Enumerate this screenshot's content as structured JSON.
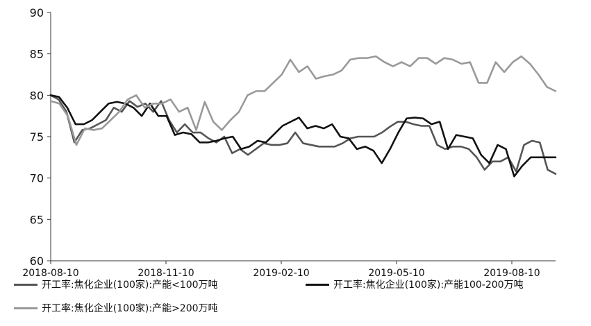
{
  "chart_data": {
    "type": "line",
    "title": "",
    "xlabel": "",
    "ylabel": "",
    "ylim": [
      60,
      90
    ],
    "yticks": [
      60,
      65,
      70,
      75,
      80,
      85,
      90
    ],
    "xtick_labels": [
      "2018-08-10",
      "2018-11-10",
      "2019-02-10",
      "2019-05-10",
      "2019-08-10"
    ],
    "grid": false,
    "legend_position": "bottom",
    "series": [
      {
        "name": "开工率:焦化企业(100家):产能<100万吨",
        "color": "#555555",
        "values": [
          80.0,
          79.5,
          78.0,
          74.3,
          75.8,
          76.0,
          76.5,
          77.0,
          78.5,
          78.0,
          79.3,
          78.6,
          79.0,
          78.0,
          79.3,
          77.0,
          75.5,
          76.5,
          75.5,
          75.5,
          74.8,
          74.3,
          75.0,
          73.0,
          73.5,
          72.8,
          73.5,
          74.2,
          74.0,
          74.0,
          74.2,
          75.5,
          74.2,
          74.0,
          73.8,
          73.8,
          73.8,
          74.2,
          74.8,
          75.0,
          75.0,
          75.0,
          75.5,
          76.2,
          76.8,
          76.8,
          76.5,
          76.3,
          76.3,
          74.0,
          73.5,
          73.8,
          73.8,
          73.5,
          72.5,
          71.0,
          72.0,
          72.0,
          72.5,
          70.8,
          74.0,
          74.5,
          74.3,
          71.0,
          70.5
        ]
      },
      {
        "name": "开工率:焦化企业(100家):产能100-200万吨",
        "color": "#111111",
        "values": [
          80.0,
          79.8,
          78.5,
          76.5,
          76.5,
          77.0,
          78.0,
          79.0,
          79.2,
          79.0,
          78.5,
          77.5,
          79.0,
          77.5,
          77.5,
          75.2,
          75.5,
          75.3,
          74.3,
          74.3,
          74.5,
          74.8,
          75.0,
          73.5,
          73.8,
          74.5,
          74.3,
          75.3,
          76.3,
          76.8,
          77.3,
          76.0,
          76.3,
          76.0,
          76.5,
          75.0,
          74.8,
          73.5,
          73.8,
          73.3,
          71.8,
          73.5,
          75.5,
          77.2,
          77.3,
          77.2,
          76.5,
          76.8,
          73.5,
          75.2,
          75.0,
          74.8,
          72.8,
          71.8,
          74.0,
          73.5,
          70.2,
          71.5,
          72.5,
          72.5,
          72.5,
          72.5
        ]
      },
      {
        "name": "开工率:焦化企业(100家):产能>200万吨",
        "color": "#999999",
        "values": [
          79.3,
          79.0,
          77.5,
          74.0,
          76.0,
          75.8,
          76.0,
          77.0,
          78.0,
          79.5,
          80.0,
          78.5,
          79.0,
          79.0,
          79.5,
          78.0,
          78.5,
          75.8,
          79.2,
          76.8,
          75.8,
          77.0,
          78.0,
          80.0,
          80.5,
          80.5,
          81.5,
          82.5,
          84.3,
          82.8,
          83.5,
          82.0,
          82.3,
          82.5,
          83.0,
          84.3,
          84.5,
          84.5,
          84.7,
          84.0,
          83.5,
          84.0,
          83.5,
          84.5,
          84.5,
          83.8,
          84.5,
          84.3,
          83.8,
          84.0,
          81.5,
          81.5,
          84.0,
          82.8,
          84.0,
          84.7,
          83.8,
          82.5,
          81.0,
          80.5
        ]
      }
    ]
  }
}
